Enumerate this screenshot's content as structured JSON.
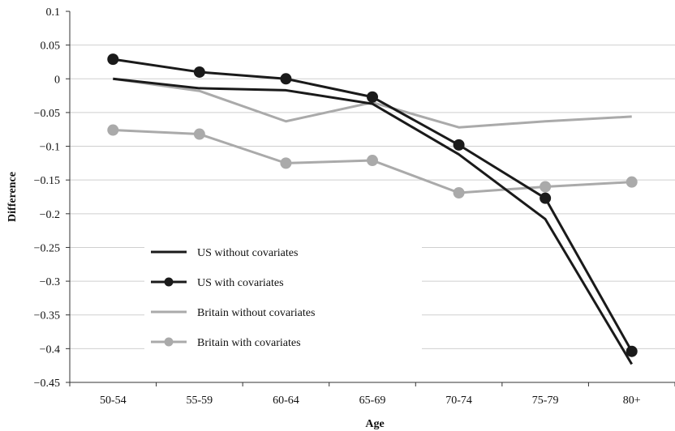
{
  "chart_data": {
    "type": "line",
    "title": "",
    "xlabel": "Age",
    "ylabel": "Difference",
    "categories": [
      "50-54",
      "55-59",
      "60-64",
      "65-69",
      "70-74",
      "75-79",
      "80+"
    ],
    "ylim": [
      -0.45,
      0.1
    ],
    "yticks": [
      0.1,
      0.05,
      0,
      -0.05,
      -0.1,
      -0.15,
      -0.2,
      -0.25,
      -0.3,
      -0.35,
      -0.4,
      -0.45
    ],
    "ytick_labels": [
      "0.1",
      "0.05",
      "0",
      "−0.05",
      "−0.1",
      "−0.15",
      "−0.2",
      "−0.25",
      "−0.3",
      "−0.35",
      "−0.4",
      "−0.45"
    ],
    "grid": "horizontal",
    "legend_position": "lower-left",
    "series": [
      {
        "name": "US without covariates",
        "color": "#1a1a1a",
        "marker": false,
        "values": [
          0.0,
          -0.014,
          -0.017,
          -0.037,
          -0.112,
          -0.208,
          -0.423
        ]
      },
      {
        "name": "US with covariates",
        "color": "#1a1a1a",
        "marker": true,
        "values": [
          0.029,
          0.01,
          0.0,
          -0.027,
          -0.098,
          -0.177,
          -0.404
        ]
      },
      {
        "name": "Britain without covariates",
        "color": "#aaaaaa",
        "marker": false,
        "values": [
          0.0,
          -0.018,
          -0.063,
          -0.035,
          -0.072,
          -0.063,
          -0.056
        ]
      },
      {
        "name": "Britain with covariates",
        "color": "#aaaaaa",
        "marker": true,
        "values": [
          -0.076,
          -0.082,
          -0.125,
          -0.121,
          -0.169,
          -0.16,
          -0.153
        ]
      }
    ]
  }
}
